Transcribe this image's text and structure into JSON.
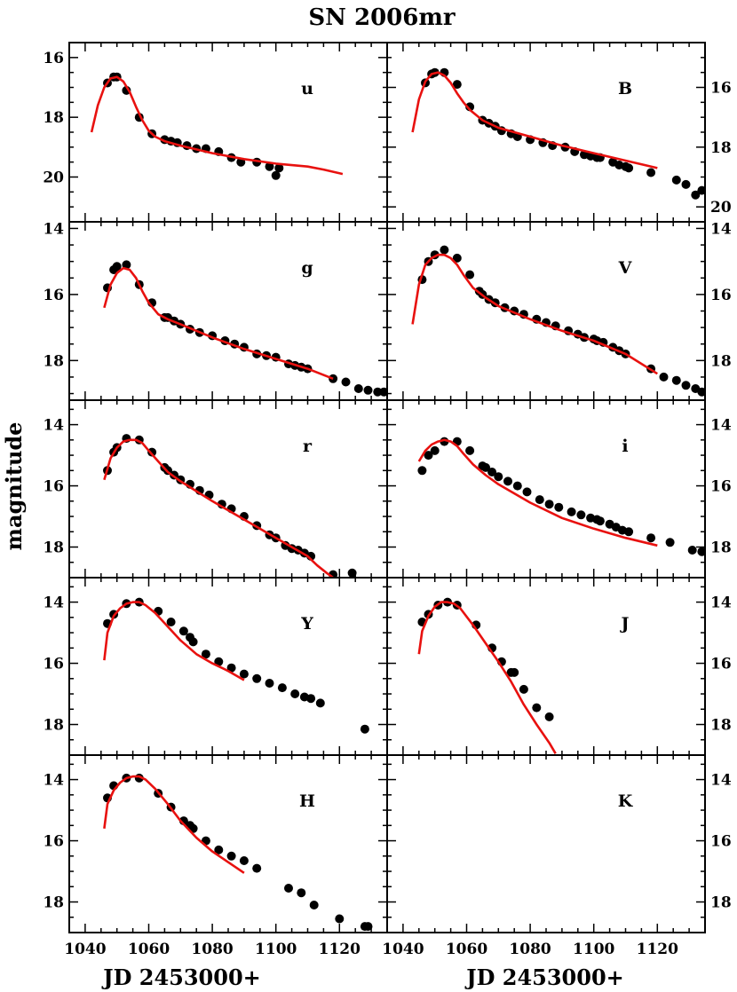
{
  "figure": {
    "title": "SN 2006mr",
    "ylabel": "magnitude",
    "xlabel": "JD 2453000+"
  },
  "chart_data": [
    {
      "type": "scatter",
      "title": "u",
      "row": 0,
      "col": 0,
      "xlim": [
        1035,
        1135
      ],
      "ylim": [
        21.5,
        15.5
      ],
      "yticks": [
        16,
        18,
        20
      ],
      "series": [
        {
          "kind": "points",
          "x": [
            1047,
            1049,
            1050,
            1053,
            1057,
            1061,
            1065,
            1067,
            1069,
            1072,
            1075,
            1078,
            1082,
            1086,
            1089,
            1094,
            1098,
            1100,
            1101
          ],
          "y": [
            16.85,
            16.65,
            16.65,
            17.1,
            18.0,
            18.55,
            18.75,
            18.8,
            18.85,
            18.95,
            19.05,
            19.05,
            19.15,
            19.35,
            19.5,
            19.5,
            19.65,
            19.95,
            19.7
          ]
        },
        {
          "kind": "line",
          "x": [
            1042,
            1044,
            1046,
            1048,
            1050,
            1052,
            1054,
            1056,
            1058,
            1060,
            1062,
            1065,
            1070,
            1080,
            1090,
            1100,
            1110,
            1115,
            1121
          ],
          "y": [
            18.5,
            17.6,
            17.0,
            16.7,
            16.65,
            16.8,
            17.15,
            17.65,
            18.1,
            18.45,
            18.65,
            18.8,
            18.95,
            19.2,
            19.4,
            19.55,
            19.65,
            19.75,
            19.9
          ]
        }
      ]
    },
    {
      "type": "scatter",
      "title": "B",
      "row": 0,
      "col": 1,
      "xlim": [
        1035,
        1135
      ],
      "ylim": [
        20.5,
        14.5
      ],
      "yticks": [
        16,
        18,
        20
      ],
      "series": [
        {
          "kind": "points",
          "x": [
            1047,
            1049,
            1050,
            1053,
            1057,
            1061,
            1065,
            1067,
            1069,
            1071,
            1074,
            1076,
            1080,
            1084,
            1087,
            1091,
            1094,
            1097,
            1099,
            1101,
            1102,
            1106,
            1108,
            1110,
            1111,
            1118,
            1126,
            1129,
            1132,
            1134
          ],
          "y": [
            15.85,
            15.55,
            15.5,
            15.5,
            15.9,
            16.65,
            17.1,
            17.2,
            17.3,
            17.45,
            17.55,
            17.65,
            17.75,
            17.85,
            17.95,
            18.0,
            18.15,
            18.25,
            18.3,
            18.35,
            18.35,
            18.5,
            18.6,
            18.65,
            18.7,
            18.85,
            19.1,
            19.25,
            19.6,
            19.45
          ]
        },
        {
          "kind": "line",
          "x": [
            1043,
            1045,
            1047,
            1049,
            1051,
            1053,
            1055,
            1057,
            1059,
            1061,
            1065,
            1070,
            1080,
            1090,
            1100,
            1110,
            1116,
            1120
          ],
          "y": [
            17.5,
            16.4,
            15.8,
            15.55,
            15.5,
            15.6,
            15.85,
            16.2,
            16.5,
            16.75,
            17.1,
            17.35,
            17.65,
            17.95,
            18.2,
            18.45,
            18.6,
            18.7
          ]
        }
      ]
    },
    {
      "type": "scatter",
      "title": "g",
      "row": 1,
      "col": 0,
      "xlim": [
        1035,
        1135
      ],
      "ylim": [
        19.2,
        13.8
      ],
      "yticks": [
        14,
        16,
        18
      ],
      "series": [
        {
          "kind": "points",
          "x": [
            1047,
            1049,
            1050,
            1053,
            1057,
            1061,
            1065,
            1066,
            1068,
            1070,
            1073,
            1076,
            1080,
            1084,
            1087,
            1090,
            1094,
            1097,
            1100,
            1104,
            1106,
            1108,
            1110,
            1118,
            1122,
            1126,
            1129,
            1132,
            1134
          ],
          "y": [
            15.8,
            15.25,
            15.15,
            15.1,
            15.7,
            16.25,
            16.7,
            16.7,
            16.8,
            16.9,
            17.05,
            17.15,
            17.25,
            17.4,
            17.5,
            17.6,
            17.8,
            17.85,
            17.9,
            18.1,
            18.15,
            18.2,
            18.25,
            18.55,
            18.65,
            18.85,
            18.9,
            18.95,
            18.95
          ]
        },
        {
          "kind": "line",
          "x": [
            1046,
            1048,
            1050,
            1052,
            1054,
            1056,
            1058,
            1060,
            1063,
            1066,
            1070,
            1080,
            1090,
            1100,
            1110,
            1118
          ],
          "y": [
            16.4,
            15.7,
            15.35,
            15.2,
            15.25,
            15.5,
            15.9,
            16.25,
            16.6,
            16.75,
            16.9,
            17.3,
            17.65,
            17.95,
            18.25,
            18.55
          ]
        }
      ]
    },
    {
      "type": "scatter",
      "title": "V",
      "row": 1,
      "col": 1,
      "xlim": [
        1035,
        1135
      ],
      "ylim": [
        19.2,
        13.8
      ],
      "yticks": [
        14,
        16,
        18
      ],
      "series": [
        {
          "kind": "points",
          "x": [
            1046,
            1048,
            1050,
            1053,
            1057,
            1061,
            1064,
            1065,
            1067,
            1069,
            1072,
            1075,
            1078,
            1082,
            1085,
            1088,
            1092,
            1095,
            1097,
            1100,
            1101,
            1103,
            1106,
            1108,
            1110,
            1118,
            1122,
            1126,
            1129,
            1132,
            1134
          ],
          "y": [
            15.55,
            15.0,
            14.8,
            14.65,
            14.9,
            15.4,
            15.9,
            16.0,
            16.15,
            16.25,
            16.4,
            16.5,
            16.6,
            16.75,
            16.85,
            16.95,
            17.1,
            17.2,
            17.3,
            17.35,
            17.4,
            17.45,
            17.6,
            17.7,
            17.8,
            18.25,
            18.5,
            18.6,
            18.75,
            18.85,
            18.95
          ]
        },
        {
          "kind": "line",
          "x": [
            1043,
            1045,
            1047,
            1049,
            1051,
            1053,
            1055,
            1057,
            1059,
            1062,
            1066,
            1070,
            1080,
            1090,
            1100,
            1110,
            1120
          ],
          "y": [
            16.9,
            15.7,
            15.1,
            14.9,
            14.8,
            14.8,
            14.9,
            15.1,
            15.4,
            15.8,
            16.1,
            16.35,
            16.75,
            17.1,
            17.4,
            17.8,
            18.4
          ]
        }
      ]
    },
    {
      "type": "scatter",
      "title": "r",
      "row": 2,
      "col": 0,
      "xlim": [
        1035,
        1135
      ],
      "ylim": [
        19.0,
        13.2
      ],
      "yticks": [
        14,
        16,
        18
      ],
      "series": [
        {
          "kind": "points",
          "x": [
            1047,
            1049,
            1050,
            1053,
            1057,
            1061,
            1065,
            1066,
            1068,
            1070,
            1073,
            1076,
            1079,
            1083,
            1086,
            1090,
            1094,
            1098,
            1100,
            1103,
            1105,
            1107,
            1109,
            1111,
            1118,
            1124
          ],
          "y": [
            15.5,
            14.9,
            14.75,
            14.45,
            14.5,
            14.9,
            15.4,
            15.5,
            15.65,
            15.8,
            15.95,
            16.15,
            16.3,
            16.6,
            16.75,
            17.0,
            17.3,
            17.6,
            17.7,
            17.95,
            18.05,
            18.1,
            18.2,
            18.3,
            18.9,
            18.85
          ]
        },
        {
          "kind": "line",
          "x": [
            1046,
            1048,
            1050,
            1052,
            1054,
            1056,
            1058,
            1060,
            1063,
            1066,
            1070,
            1080,
            1090,
            1100,
            1110,
            1113,
            1116,
            1118
          ],
          "y": [
            15.8,
            15.1,
            14.75,
            14.55,
            14.5,
            14.5,
            14.6,
            14.85,
            15.2,
            15.55,
            15.85,
            16.5,
            17.1,
            17.7,
            18.3,
            18.6,
            18.85,
            19.0
          ]
        }
      ]
    },
    {
      "type": "scatter",
      "title": "i",
      "row": 2,
      "col": 1,
      "xlim": [
        1035,
        1135
      ],
      "ylim": [
        19.0,
        13.2
      ],
      "yticks": [
        14,
        16,
        18
      ],
      "series": [
        {
          "kind": "points",
          "x": [
            1046,
            1048,
            1050,
            1053,
            1057,
            1061,
            1065,
            1066,
            1068,
            1070,
            1073,
            1076,
            1079,
            1083,
            1086,
            1089,
            1093,
            1096,
            1099,
            1101,
            1102,
            1105,
            1107,
            1109,
            1111,
            1118,
            1124,
            1131,
            1134
          ],
          "y": [
            15.5,
            15.0,
            14.85,
            14.55,
            14.55,
            14.85,
            15.35,
            15.4,
            15.55,
            15.7,
            15.85,
            16.0,
            16.2,
            16.45,
            16.6,
            16.7,
            16.85,
            16.95,
            17.05,
            17.1,
            17.15,
            17.25,
            17.35,
            17.45,
            17.5,
            17.7,
            17.85,
            18.1,
            18.15
          ]
        },
        {
          "kind": "line",
          "x": [
            1045,
            1047,
            1049,
            1051,
            1053,
            1055,
            1057,
            1059,
            1062,
            1066,
            1070,
            1080,
            1090,
            1100,
            1110,
            1120
          ],
          "y": [
            15.2,
            14.85,
            14.65,
            14.55,
            14.5,
            14.55,
            14.7,
            14.95,
            15.3,
            15.65,
            15.95,
            16.55,
            17.05,
            17.4,
            17.7,
            17.95
          ]
        }
      ]
    },
    {
      "type": "scatter",
      "title": "Y",
      "row": 3,
      "col": 0,
      "xlim": [
        1035,
        1135
      ],
      "ylim": [
        19.0,
        13.2
      ],
      "yticks": [
        14,
        16,
        18
      ],
      "series": [
        {
          "kind": "points",
          "x": [
            1047,
            1049,
            1053,
            1057,
            1063,
            1067,
            1071,
            1073,
            1074,
            1078,
            1082,
            1086,
            1090,
            1094,
            1098,
            1102,
            1106,
            1109,
            1111,
            1114,
            1128
          ],
          "y": [
            14.7,
            14.4,
            14.05,
            14.0,
            14.3,
            14.65,
            14.95,
            15.15,
            15.3,
            15.7,
            15.95,
            16.15,
            16.35,
            16.5,
            16.65,
            16.8,
            17.0,
            17.1,
            17.15,
            17.3,
            18.15
          ]
        },
        {
          "kind": "line",
          "x": [
            1046,
            1047,
            1049,
            1051,
            1053,
            1055,
            1057,
            1059,
            1062,
            1066,
            1070,
            1075,
            1080,
            1085,
            1090
          ],
          "y": [
            15.9,
            15.0,
            14.45,
            14.2,
            14.05,
            14.0,
            14.0,
            14.1,
            14.35,
            14.8,
            15.25,
            15.7,
            16.0,
            16.25,
            16.55
          ]
        }
      ]
    },
    {
      "type": "scatter",
      "title": "J",
      "row": 3,
      "col": 1,
      "xlim": [
        1035,
        1135
      ],
      "ylim": [
        19.0,
        13.2
      ],
      "yticks": [
        14,
        16,
        18
      ],
      "series": [
        {
          "kind": "points",
          "x": [
            1046,
            1048,
            1051,
            1054,
            1057,
            1063,
            1068,
            1071,
            1074,
            1075,
            1078,
            1082,
            1086
          ],
          "y": [
            14.65,
            14.4,
            14.1,
            14.0,
            14.1,
            14.75,
            15.5,
            15.95,
            16.3,
            16.3,
            16.85,
            17.45,
            17.75
          ]
        },
        {
          "kind": "line",
          "x": [
            1045,
            1046,
            1048,
            1050,
            1052,
            1054,
            1056,
            1058,
            1062,
            1066,
            1070,
            1074,
            1078,
            1082,
            1086,
            1088
          ],
          "y": [
            15.7,
            14.95,
            14.45,
            14.15,
            14.0,
            14.0,
            14.05,
            14.2,
            14.75,
            15.35,
            15.95,
            16.6,
            17.35,
            18.0,
            18.6,
            18.95
          ]
        }
      ]
    },
    {
      "type": "scatter",
      "title": "H",
      "row": 4,
      "col": 0,
      "xlim": [
        1035,
        1135
      ],
      "ylim": [
        19.0,
        13.2
      ],
      "yticks": [
        14,
        16,
        18
      ],
      "series": [
        {
          "kind": "points",
          "x": [
            1047,
            1049,
            1053,
            1057,
            1063,
            1067,
            1071,
            1073,
            1074,
            1078,
            1082,
            1086,
            1090,
            1094,
            1104,
            1108,
            1112,
            1120,
            1128,
            1129
          ],
          "y": [
            14.6,
            14.2,
            13.95,
            13.95,
            14.45,
            14.9,
            15.35,
            15.5,
            15.6,
            16.0,
            16.3,
            16.5,
            16.65,
            16.9,
            17.55,
            17.7,
            18.1,
            18.55,
            18.8,
            18.8
          ]
        },
        {
          "kind": "line",
          "x": [
            1046,
            1047,
            1049,
            1051,
            1053,
            1055,
            1057,
            1059,
            1062,
            1066,
            1070,
            1075,
            1080,
            1085,
            1090
          ],
          "y": [
            15.6,
            14.8,
            14.35,
            14.1,
            13.95,
            13.9,
            13.9,
            14.0,
            14.3,
            14.8,
            15.35,
            15.9,
            16.35,
            16.7,
            17.05
          ]
        }
      ]
    },
    {
      "type": "scatter",
      "title": "K",
      "row": 4,
      "col": 1,
      "xlim": [
        1035,
        1135
      ],
      "ylim": [
        19.0,
        13.2
      ],
      "yticks": [
        14,
        16,
        18
      ],
      "series": []
    }
  ]
}
